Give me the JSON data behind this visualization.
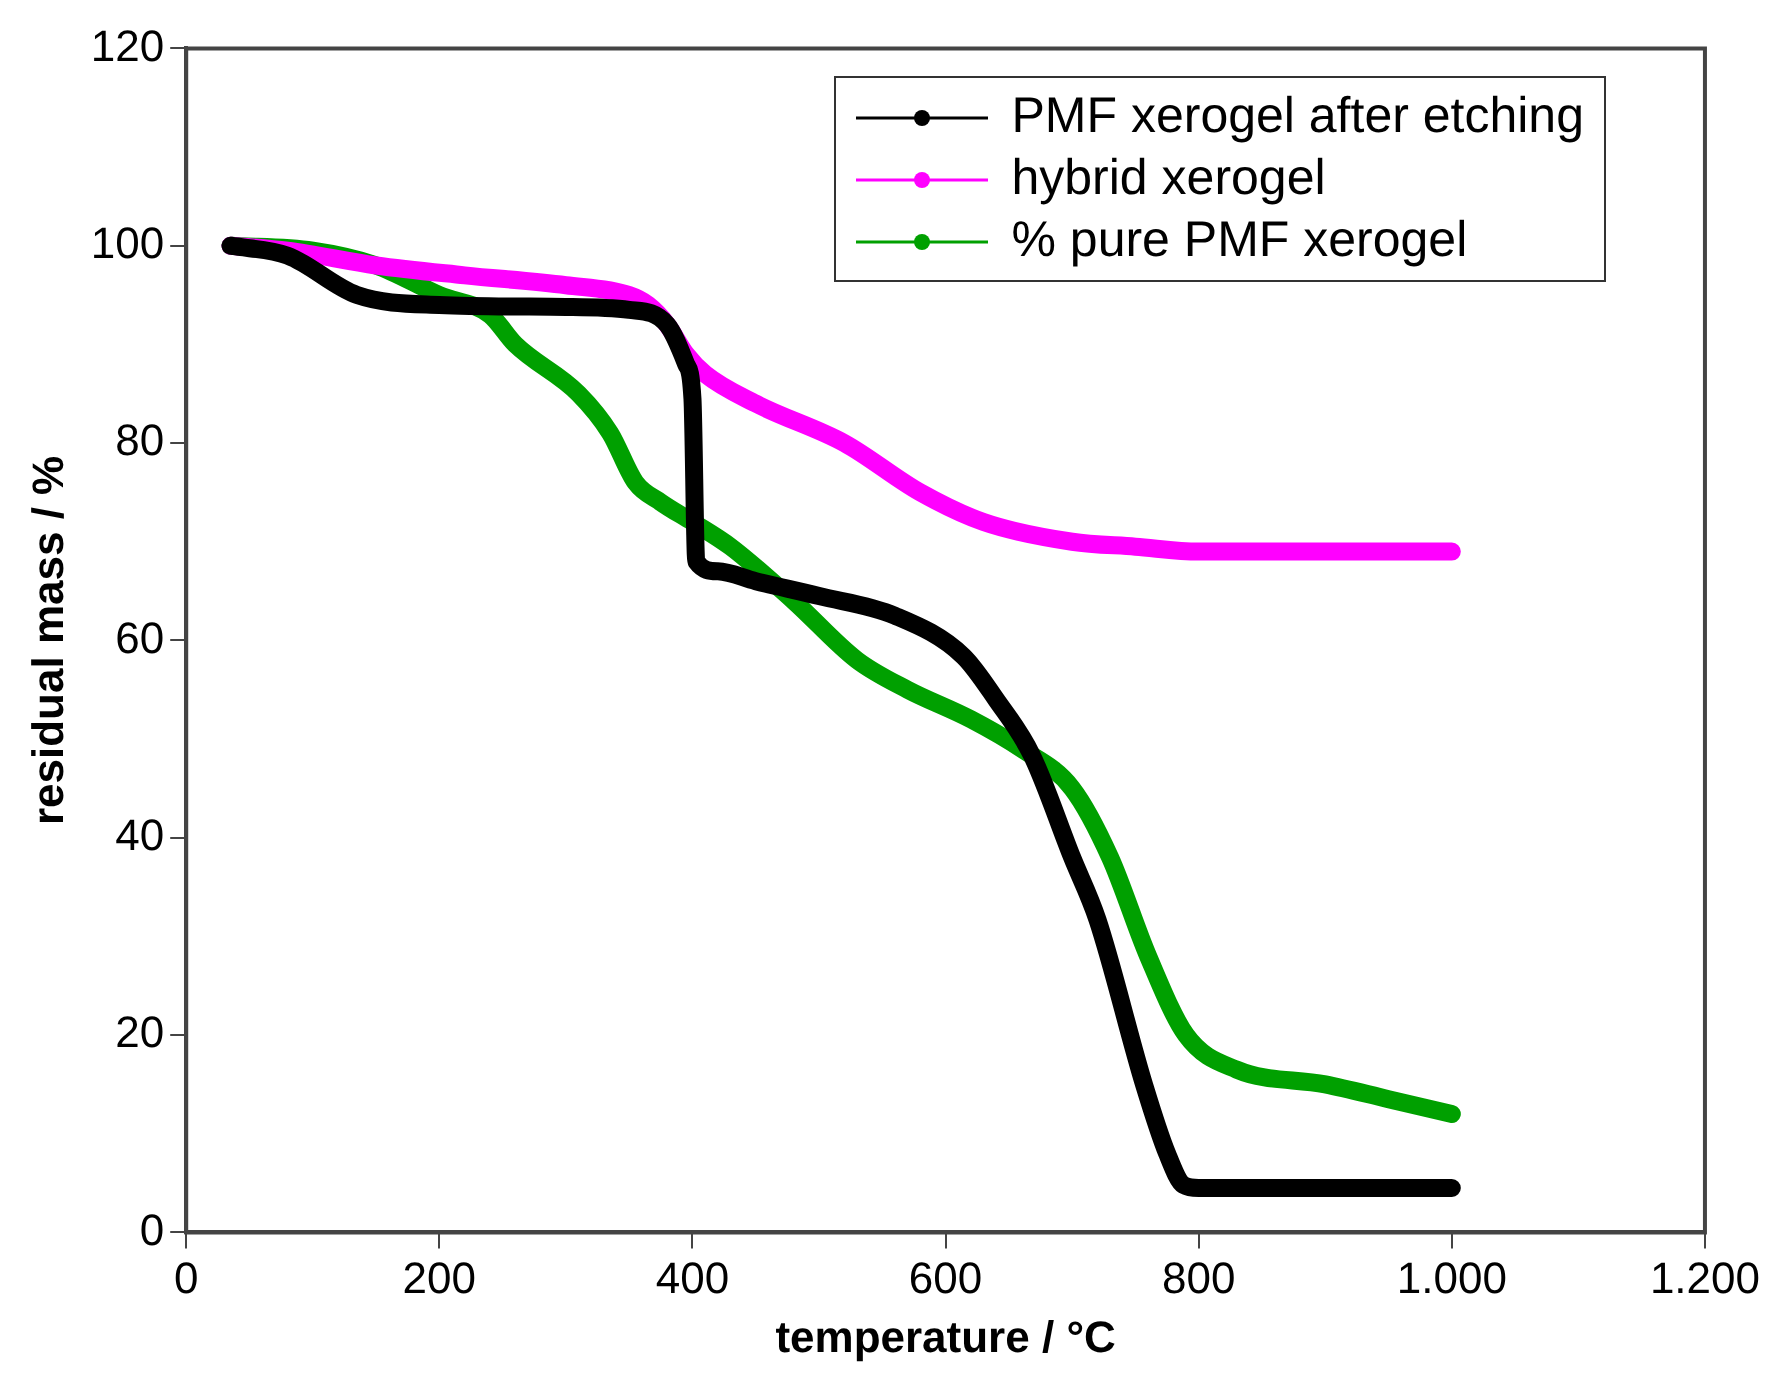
{
  "chart_data": {
    "type": "line",
    "xlabel": "temperature / °C",
    "ylabel": "residual mass / %",
    "xlim": [
      0,
      1200
    ],
    "ylim": [
      0,
      120
    ],
    "xticks": [
      0,
      200,
      400,
      600,
      800,
      {
        "value": 1000,
        "label": "1.000"
      },
      {
        "value": 1200,
        "label": "1.200"
      }
    ],
    "yticks": [
      0,
      20,
      40,
      60,
      80,
      100,
      120
    ],
    "grid": false,
    "legend": "top right",
    "marker": "none",
    "line_style": "solid",
    "series": [
      {
        "name": "PMF xerogel after etching",
        "color": "#000000",
        "x": [
          35,
          80,
          135,
          200,
          300,
          350,
          380,
          395,
          400,
          403,
          420,
          450,
          500,
          560,
          614,
          640,
          668,
          700,
          720,
          757,
          775,
          788,
          800,
          900,
          1000
        ],
        "values": [
          100,
          99,
          95,
          94,
          93.8,
          93.5,
          92,
          88,
          84.5,
          68,
          67,
          66,
          64.5,
          62.5,
          58.4,
          54,
          48.4,
          38,
          31.7,
          14.9,
          8,
          4.8,
          4.5,
          4.5,
          4.5
        ]
      },
      {
        "name": "hybrid xerogel",
        "color": "#ff00ff",
        "x": [
          35,
          80,
          150,
          220,
          300,
          350,
          365,
          380,
          395,
          410,
          450,
          520,
          580,
          630,
          700,
          750,
          800,
          900,
          1000
        ],
        "values": [
          100,
          99.5,
          98,
          97,
          96,
          95,
          94,
          92,
          89,
          87,
          84,
          80,
          75,
          72,
          70,
          69.5,
          69,
          69,
          69
        ]
      },
      {
        "name": "% pure PMF xerogel",
        "color": "#00a000",
        "x": [
          35,
          100,
          150,
          200,
          240,
          260,
          310,
          335,
          355,
          375,
          400,
          430,
          480,
          530,
          570,
          620,
          660,
          700,
          730,
          760,
          790,
          830,
          900,
          950,
          1000
        ],
        "values": [
          100,
          99.5,
          98,
          95,
          93,
          90,
          85,
          81,
          76,
          74,
          72,
          69.5,
          64,
          58,
          55,
          52,
          49,
          45,
          38,
          28,
          20,
          16.5,
          15,
          13.5,
          12
        ]
      }
    ]
  }
}
